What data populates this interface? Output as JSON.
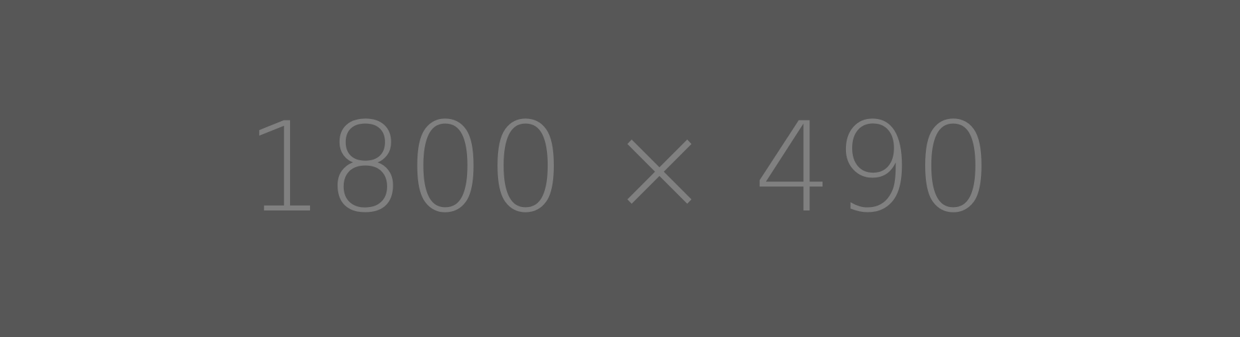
{
  "placeholder": {
    "label": "1800 × 490",
    "background_color": "#575757",
    "text_color": "#808080"
  }
}
